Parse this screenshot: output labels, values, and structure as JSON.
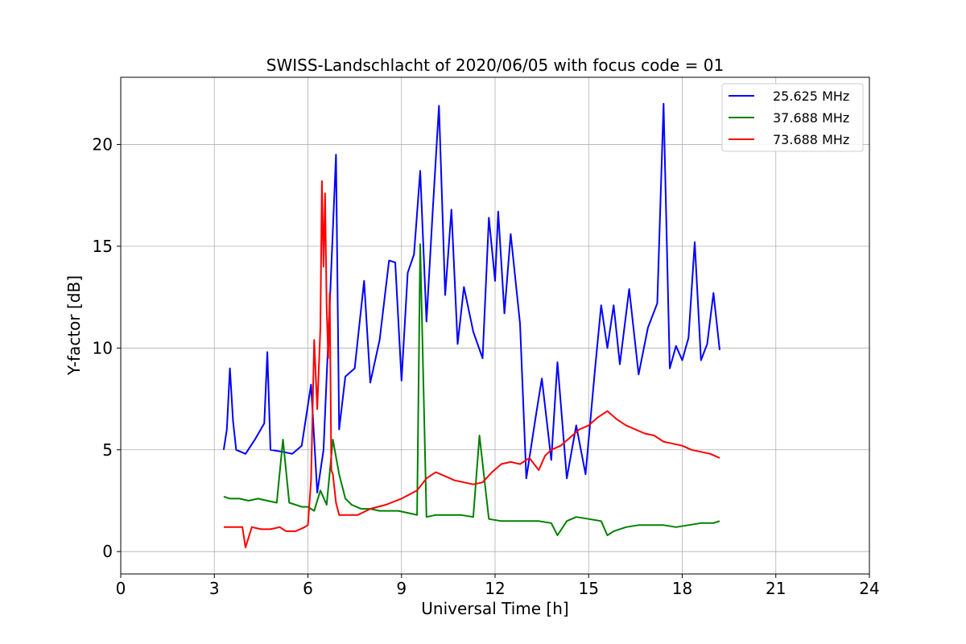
{
  "chart_data": {
    "type": "line",
    "title": "SWISS-Landschlacht of 2020/06/05 with focus code = 01",
    "xlabel": "Universal Time [h]",
    "ylabel": "Y-factor [dB]",
    "xlim": [
      0,
      24
    ],
    "ylim": [
      -1.1,
      23.3
    ],
    "xticks": [
      0,
      3,
      6,
      9,
      12,
      15,
      18,
      21,
      24
    ],
    "yticks": [
      0,
      5,
      10,
      15,
      20
    ],
    "grid": true,
    "legend_position": "top-right",
    "series": [
      {
        "name": "25.625 MHz",
        "color": "#0000ff",
        "x": [
          3.3,
          3.4,
          3.5,
          3.6,
          3.7,
          4.0,
          4.3,
          4.6,
          4.7,
          4.8,
          5.2,
          5.5,
          5.8,
          6.1,
          6.3,
          6.5,
          6.7,
          6.9,
          7.0,
          7.2,
          7.5,
          7.8,
          8.0,
          8.3,
          8.6,
          8.8,
          9.0,
          9.2,
          9.4,
          9.6,
          9.8,
          10.0,
          10.2,
          10.4,
          10.6,
          10.8,
          11.0,
          11.3,
          11.6,
          11.8,
          12.0,
          12.1,
          12.3,
          12.5,
          12.8,
          13.0,
          13.3,
          13.5,
          13.8,
          14.0,
          14.3,
          14.6,
          14.9,
          15.2,
          15.4,
          15.6,
          15.8,
          16.0,
          16.3,
          16.6,
          16.9,
          17.2,
          17.4,
          17.6,
          17.8,
          18.0,
          18.2,
          18.4,
          18.6,
          18.8,
          19.0,
          19.2
        ],
        "y": [
          5.0,
          6.0,
          9.0,
          6.4,
          5.0,
          4.8,
          5.5,
          6.3,
          9.8,
          5.0,
          4.9,
          4.8,
          5.2,
          8.2,
          2.9,
          5.0,
          12.1,
          19.5,
          6.0,
          8.6,
          9.0,
          13.3,
          8.3,
          10.4,
          14.3,
          14.2,
          8.4,
          13.7,
          14.6,
          18.7,
          11.3,
          16.7,
          21.9,
          12.6,
          16.8,
          10.2,
          13.0,
          10.8,
          9.5,
          16.4,
          13.3,
          16.7,
          11.7,
          15.6,
          11.2,
          3.6,
          6.6,
          8.5,
          4.5,
          9.3,
          3.6,
          6.2,
          3.8,
          8.9,
          12.1,
          10.0,
          12.1,
          9.2,
          12.9,
          8.7,
          11.0,
          12.2,
          22.0,
          9.0,
          10.1,
          9.4,
          10.5,
          15.2,
          9.4,
          10.2,
          12.7,
          9.9
        ]
      },
      {
        "name": "37.688 MHz",
        "color": "#008000",
        "x": [
          3.3,
          3.5,
          3.8,
          4.1,
          4.4,
          4.7,
          5.0,
          5.2,
          5.4,
          5.6,
          5.8,
          6.0,
          6.2,
          6.4,
          6.6,
          6.8,
          7.0,
          7.2,
          7.4,
          7.7,
          8.0,
          8.3,
          8.6,
          8.9,
          9.2,
          9.5,
          9.6,
          9.8,
          10.1,
          10.5,
          10.9,
          11.3,
          11.5,
          11.8,
          12.2,
          12.6,
          13.0,
          13.4,
          13.8,
          14.0,
          14.3,
          14.6,
          15.0,
          15.4,
          15.6,
          15.8,
          16.2,
          16.6,
          17.0,
          17.4,
          17.8,
          18.2,
          18.6,
          19.0,
          19.2
        ],
        "y": [
          2.7,
          2.6,
          2.6,
          2.5,
          2.6,
          2.5,
          2.4,
          5.5,
          2.4,
          2.3,
          2.2,
          2.2,
          2.0,
          3.0,
          2.3,
          5.5,
          3.8,
          2.6,
          2.3,
          2.1,
          2.1,
          2.0,
          2.0,
          2.0,
          1.9,
          1.8,
          15.1,
          1.7,
          1.8,
          1.8,
          1.8,
          1.7,
          5.7,
          1.6,
          1.5,
          1.5,
          1.5,
          1.5,
          1.4,
          0.8,
          1.5,
          1.7,
          1.6,
          1.5,
          0.8,
          1.0,
          1.2,
          1.3,
          1.3,
          1.3,
          1.2,
          1.3,
          1.4,
          1.4,
          1.5
        ]
      },
      {
        "name": "73.688 MHz",
        "color": "#ff0000",
        "x": [
          3.3,
          3.6,
          3.9,
          4.0,
          4.2,
          4.5,
          4.8,
          5.1,
          5.3,
          5.6,
          5.9,
          6.0,
          6.1,
          6.2,
          6.3,
          6.4,
          6.45,
          6.5,
          6.55,
          6.6,
          6.65,
          6.7,
          6.75,
          6.8,
          6.9,
          7.0,
          7.3,
          7.6,
          8.0,
          8.5,
          9.0,
          9.5,
          9.8,
          10.1,
          10.4,
          10.7,
          11.0,
          11.3,
          11.6,
          11.9,
          12.2,
          12.5,
          12.8,
          13.1,
          13.4,
          13.6,
          13.8,
          14.1,
          14.4,
          14.7,
          15.0,
          15.3,
          15.6,
          15.9,
          16.2,
          16.5,
          16.8,
          17.1,
          17.4,
          17.7,
          18.0,
          18.3,
          18.6,
          18.9,
          19.2
        ],
        "y": [
          1.2,
          1.2,
          1.2,
          0.2,
          1.2,
          1.1,
          1.1,
          1.2,
          1.0,
          1.0,
          1.2,
          1.3,
          3.5,
          10.4,
          7.0,
          11.0,
          18.2,
          14.0,
          17.6,
          12.0,
          9.5,
          12.7,
          4.0,
          3.8,
          2.4,
          1.8,
          1.8,
          1.8,
          2.1,
          2.3,
          2.6,
          3.0,
          3.6,
          3.9,
          3.7,
          3.5,
          3.4,
          3.3,
          3.4,
          3.9,
          4.3,
          4.4,
          4.3,
          4.6,
          4.0,
          4.7,
          5.0,
          5.2,
          5.6,
          6.0,
          6.2,
          6.6,
          6.9,
          6.5,
          6.2,
          6.0,
          5.8,
          5.7,
          5.4,
          5.3,
          5.2,
          5.0,
          4.9,
          4.8,
          4.6
        ]
      }
    ]
  }
}
